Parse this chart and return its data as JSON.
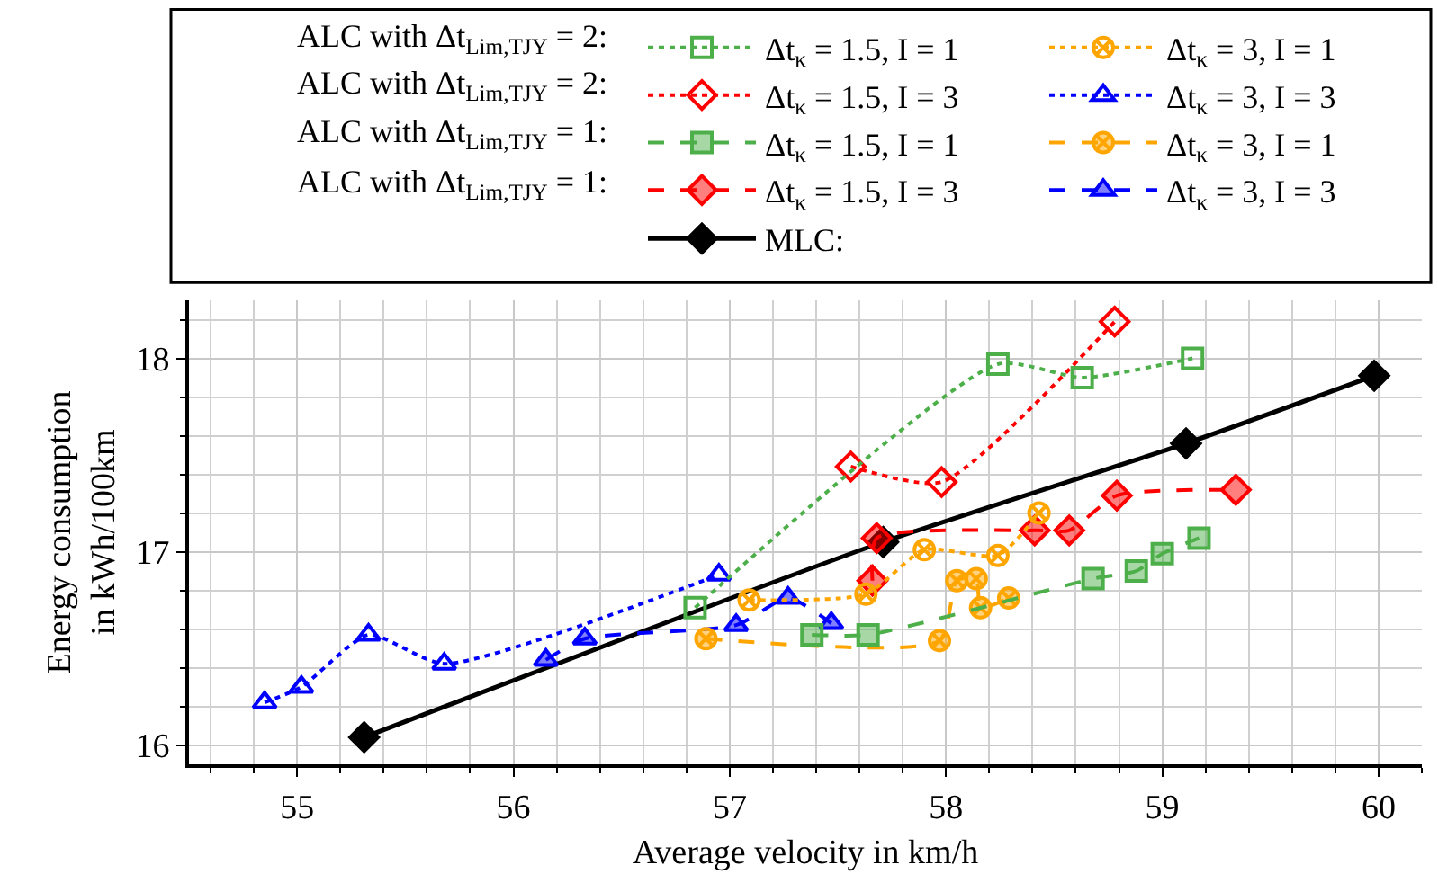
{
  "chart_data": {
    "type": "line",
    "xlabel": "Average velocity in km/h",
    "ylabel": "Energy consumption\nin kWh/100km",
    "xlim": [
      54.5,
      60.2
    ],
    "xticks": [
      55,
      56,
      57,
      58,
      59,
      60
    ],
    "ylim": [
      15.9,
      18.3
    ],
    "yticks": [
      16,
      17,
      18
    ],
    "grid": true,
    "legend": "top",
    "annotations": [
      "ALC with Δt$_{Lim,TJY}$ = 2:",
      "ALC with Δt$_{Lim,TJY}$ = 2:",
      "ALC with Δt$_{Lim,TJY}$ = 1:",
      "ALC with Δt$_{Lim,TJY}$ = 1:"
    ],
    "series": [
      {
        "name": "Δt$_{κ}$ = 1.5, I = 1",
        "color": "#4daf4a",
        "marker": "square",
        "line_style": "dotted",
        "x": [
          56.84,
          58.24,
          58.63,
          59.14
        ],
        "values": [
          16.71,
          17.97,
          17.9,
          18.0
        ]
      },
      {
        "name": "Δt$_{κ}$ = 3, I = 1",
        "color": "#ffa500",
        "marker": "cross",
        "line_style": "dotted",
        "x": [
          57.09,
          57.63,
          57.9,
          58.24,
          58.43
        ],
        "values": [
          16.75,
          16.78,
          17.01,
          16.98,
          17.2
        ]
      },
      {
        "name": "Δt$_{κ}$ = 1.5, I = 3",
        "color": "#ff0000",
        "marker": "diamond",
        "line_style": "dotted",
        "x": [
          57.56,
          57.98,
          58.78
        ],
        "values": [
          17.44,
          17.36,
          18.19
        ]
      },
      {
        "name": "Δt$_{κ}$ = 3, I = 3",
        "color": "#0000ff",
        "marker": "triangle",
        "line_style": "dotted",
        "x": [
          54.85,
          55.02,
          55.33,
          55.68,
          56.95
        ],
        "values": [
          16.22,
          16.3,
          16.57,
          16.42,
          16.88
        ]
      },
      {
        "name": "Δt$_{κ}$ = 1.5, I = 1",
        "color": "#4daf4a",
        "marker": "square",
        "line_style": "dashed",
        "x": [
          57.38,
          57.64,
          58.68,
          58.88,
          59.0,
          59.17
        ],
        "values": [
          16.57,
          16.57,
          16.86,
          16.9,
          16.99,
          17.07
        ]
      },
      {
        "name": "Δt$_{κ}$ = 3, I = 1",
        "color": "#ffa500",
        "marker": "cross",
        "line_style": "dashed",
        "x": [
          56.89,
          57.97,
          58.05,
          58.14,
          58.16,
          58.29
        ],
        "values": [
          16.55,
          16.54,
          16.85,
          16.86,
          16.71,
          16.76
        ]
      },
      {
        "name": "Δt$_{κ}$ = 1.5, I = 3",
        "color": "#ff0000",
        "marker": "diamond",
        "line_style": "dashed",
        "x": [
          57.66,
          57.68,
          58.41,
          58.57,
          58.79,
          59.34
        ],
        "values": [
          16.85,
          17.07,
          17.11,
          17.11,
          17.29,
          17.32
        ]
      },
      {
        "name": "Δt$_{κ}$ = 3, I = 3",
        "color": "#0000ff",
        "marker": "triangle",
        "line_style": "dashed",
        "x": [
          56.15,
          56.33,
          57.03,
          57.27,
          57.47
        ],
        "values": [
          16.44,
          16.55,
          16.62,
          16.76,
          16.63
        ]
      },
      {
        "name": "MLC:",
        "color": "#000000",
        "marker": "diamond",
        "line_style": "solid",
        "x": [
          55.31,
          57.71,
          59.11,
          59.98
        ],
        "values": [
          16.04,
          17.05,
          17.56,
          17.91
        ]
      }
    ]
  }
}
